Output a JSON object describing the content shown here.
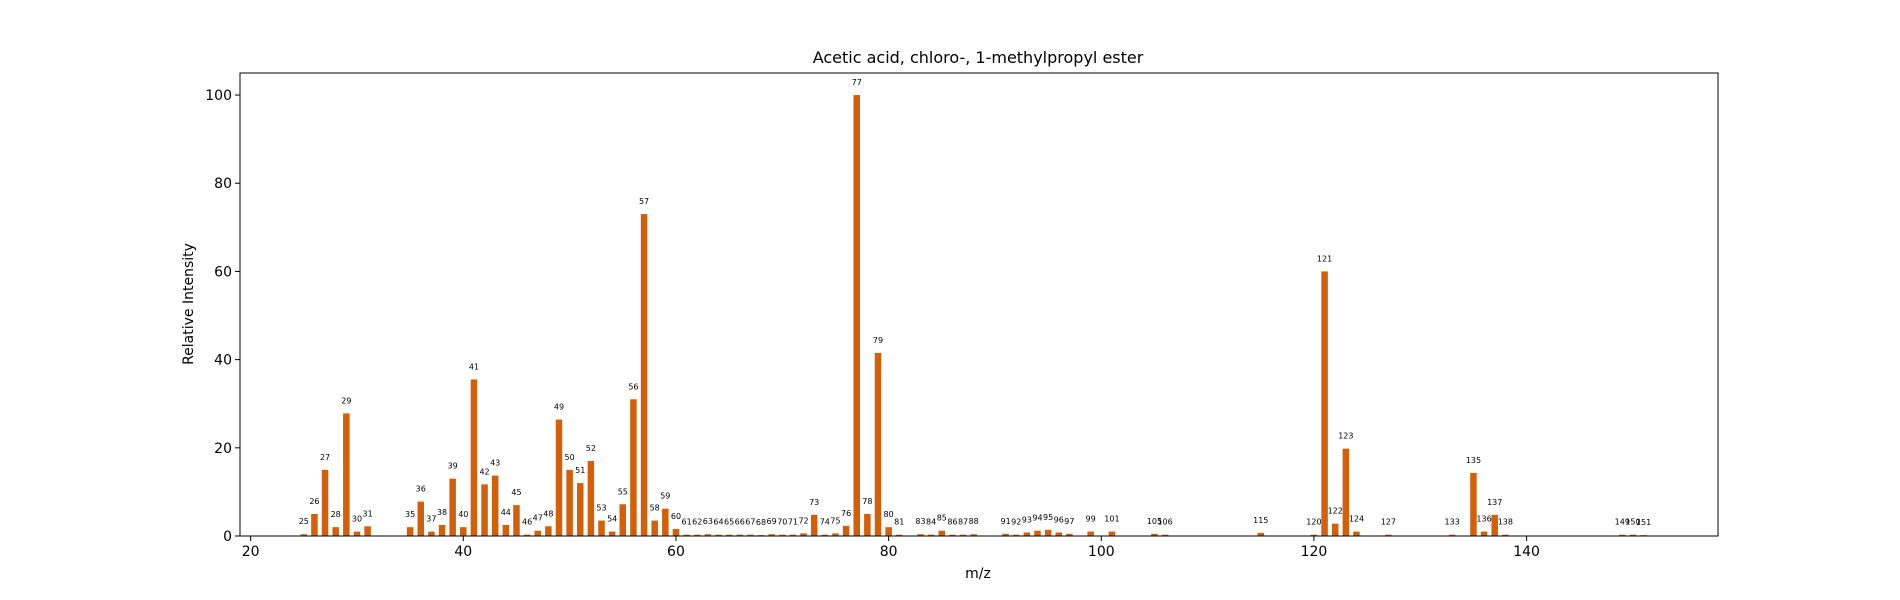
{
  "chart_data": {
    "type": "bar",
    "title": "Acetic acid, chloro-, 1-methylpropyl ester",
    "xlabel": "m/z",
    "ylabel": "Relative Intensity",
    "xlim": [
      19,
      158
    ],
    "ylim": [
      0,
      105
    ],
    "xticks": [
      20,
      40,
      60,
      80,
      100,
      120,
      140
    ],
    "yticks": [
      0,
      20,
      40,
      60,
      80,
      100
    ],
    "grid": false,
    "bar_color": "#d35f0a",
    "peaks": [
      {
        "mz": 25,
        "value": 0.4
      },
      {
        "mz": 26,
        "value": 5.0
      },
      {
        "mz": 27,
        "value": 15.0
      },
      {
        "mz": 28,
        "value": 2.0
      },
      {
        "mz": 29,
        "value": 27.8
      },
      {
        "mz": 30,
        "value": 1.0
      },
      {
        "mz": 31,
        "value": 2.2
      },
      {
        "mz": 35,
        "value": 2.0
      },
      {
        "mz": 36,
        "value": 7.8
      },
      {
        "mz": 37,
        "value": 1.0
      },
      {
        "mz": 38,
        "value": 2.5
      },
      {
        "mz": 39,
        "value": 13.0
      },
      {
        "mz": 40,
        "value": 2.0
      },
      {
        "mz": 41,
        "value": 35.5
      },
      {
        "mz": 42,
        "value": 11.7
      },
      {
        "mz": 43,
        "value": 13.7
      },
      {
        "mz": 44,
        "value": 2.5
      },
      {
        "mz": 45,
        "value": 7.0
      },
      {
        "mz": 46,
        "value": 0.3
      },
      {
        "mz": 47,
        "value": 1.2
      },
      {
        "mz": 48,
        "value": 2.2
      },
      {
        "mz": 49,
        "value": 26.4
      },
      {
        "mz": 50,
        "value": 15.0
      },
      {
        "mz": 51,
        "value": 12.0
      },
      {
        "mz": 52,
        "value": 17.0
      },
      {
        "mz": 53,
        "value": 3.5
      },
      {
        "mz": 54,
        "value": 1.0
      },
      {
        "mz": 55,
        "value": 7.2
      },
      {
        "mz": 56,
        "value": 31.0
      },
      {
        "mz": 57,
        "value": 73.0
      },
      {
        "mz": 58,
        "value": 3.5
      },
      {
        "mz": 59,
        "value": 6.2
      },
      {
        "mz": 60,
        "value": 1.6
      },
      {
        "mz": 61,
        "value": 0.3
      },
      {
        "mz": 62,
        "value": 0.3
      },
      {
        "mz": 63,
        "value": 0.4
      },
      {
        "mz": 64,
        "value": 0.3
      },
      {
        "mz": 65,
        "value": 0.3
      },
      {
        "mz": 66,
        "value": 0.3
      },
      {
        "mz": 67,
        "value": 0.3
      },
      {
        "mz": 68,
        "value": 0.2
      },
      {
        "mz": 69,
        "value": 0.4
      },
      {
        "mz": 70,
        "value": 0.3
      },
      {
        "mz": 71,
        "value": 0.3
      },
      {
        "mz": 72,
        "value": 0.6
      },
      {
        "mz": 73,
        "value": 4.8
      },
      {
        "mz": 74,
        "value": 0.3
      },
      {
        "mz": 75,
        "value": 0.6
      },
      {
        "mz": 76,
        "value": 2.3
      },
      {
        "mz": 77,
        "value": 100.0
      },
      {
        "mz": 78,
        "value": 5.0
      },
      {
        "mz": 79,
        "value": 41.5
      },
      {
        "mz": 80,
        "value": 2.0
      },
      {
        "mz": 81,
        "value": 0.3
      },
      {
        "mz": 83,
        "value": 0.4
      },
      {
        "mz": 84,
        "value": 0.3
      },
      {
        "mz": 85,
        "value": 1.2
      },
      {
        "mz": 86,
        "value": 0.3
      },
      {
        "mz": 87,
        "value": 0.3
      },
      {
        "mz": 88,
        "value": 0.4
      },
      {
        "mz": 91,
        "value": 0.5
      },
      {
        "mz": 92,
        "value": 0.3
      },
      {
        "mz": 93,
        "value": 0.8
      },
      {
        "mz": 94,
        "value": 1.2
      },
      {
        "mz": 95,
        "value": 1.4
      },
      {
        "mz": 96,
        "value": 0.8
      },
      {
        "mz": 97,
        "value": 0.5
      },
      {
        "mz": 99,
        "value": 1.0
      },
      {
        "mz": 101,
        "value": 1.0
      },
      {
        "mz": 105,
        "value": 0.5
      },
      {
        "mz": 106,
        "value": 0.3
      },
      {
        "mz": 115,
        "value": 0.7
      },
      {
        "mz": 120,
        "value": 0.3
      },
      {
        "mz": 121,
        "value": 60.0
      },
      {
        "mz": 122,
        "value": 2.8
      },
      {
        "mz": 123,
        "value": 19.8
      },
      {
        "mz": 124,
        "value": 1.0
      },
      {
        "mz": 127,
        "value": 0.3
      },
      {
        "mz": 133,
        "value": 0.3
      },
      {
        "mz": 135,
        "value": 14.3
      },
      {
        "mz": 136,
        "value": 1.0
      },
      {
        "mz": 137,
        "value": 4.8
      },
      {
        "mz": 138,
        "value": 0.3
      },
      {
        "mz": 149,
        "value": 0.3
      },
      {
        "mz": 150,
        "value": 0.3
      },
      {
        "mz": 151,
        "value": 0.2
      }
    ]
  }
}
